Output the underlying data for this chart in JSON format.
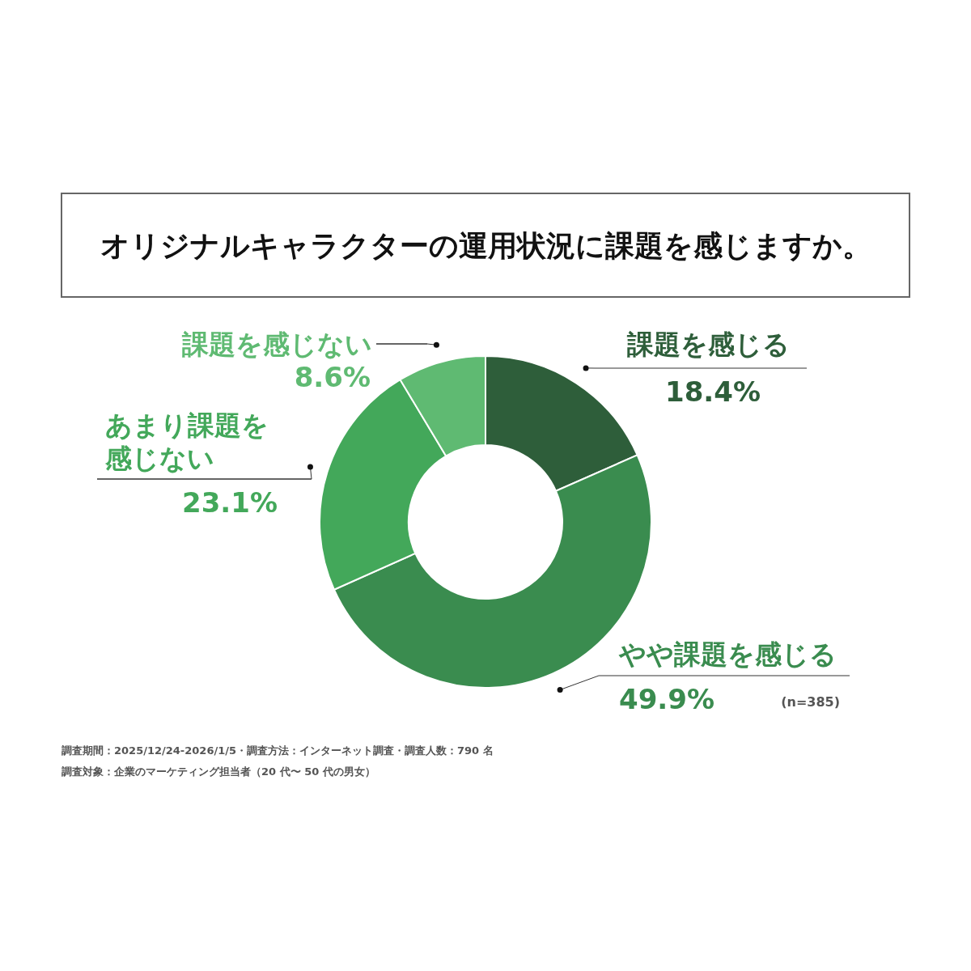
{
  "chart_data": {
    "type": "donut",
    "title": "オリジナルキャラクターの運用状況に課題を感じますか。",
    "categories": [
      "課題を感じる",
      "やや課題を感じる",
      "あまり課題を感じない",
      "課題を感じない"
    ],
    "values": [
      18.4,
      49.9,
      23.1,
      8.6
    ],
    "colors": [
      "#2e5e3a",
      "#3a8c4f",
      "#43a85a",
      "#5fba72"
    ],
    "value_labels": [
      "18.4%",
      "49.9%",
      "23.1%",
      "8.6%"
    ],
    "annotations": [
      "(n=385)",
      "調査期間：2025/12/24-2026/1/5・調査方法：インターネット調査・調査人数：790 名",
      "調査対象：企業のマーケティング担当者（20 代〜 50 代の男女）"
    ]
  }
}
